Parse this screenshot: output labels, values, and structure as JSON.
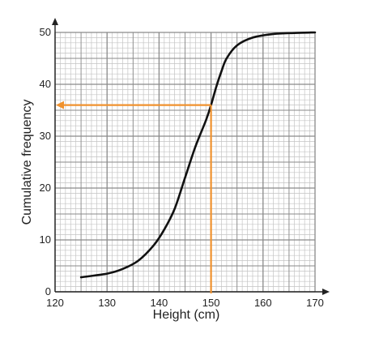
{
  "chart_data": {
    "type": "line",
    "xlabel": "Height (cm)",
    "ylabel": "Cumulative frequency",
    "xlim": [
      120,
      170
    ],
    "ylim": [
      0,
      50
    ],
    "x_ticks": [
      "120",
      "130",
      "140",
      "150",
      "160",
      "170"
    ],
    "y_ticks": [
      "0",
      "10",
      "20",
      "30",
      "40",
      "50"
    ],
    "grid": true,
    "grid_minor_step": [
      1,
      1
    ],
    "series": [
      {
        "color": "#111111",
        "points": [
          [
            125,
            2.8
          ],
          [
            130,
            3.5
          ],
          [
            133,
            4.4
          ],
          [
            136,
            6.0
          ],
          [
            139,
            9.0
          ],
          [
            141,
            12.0
          ],
          [
            143,
            16.0
          ],
          [
            145,
            22.0
          ],
          [
            147,
            28.0
          ],
          [
            149,
            33.0
          ],
          [
            150,
            36.0
          ],
          [
            151,
            39.5
          ],
          [
            152,
            42.5
          ],
          [
            153,
            45.0
          ],
          [
            155,
            47.5
          ],
          [
            158,
            49.0
          ],
          [
            162,
            49.7
          ],
          [
            166,
            49.9
          ],
          [
            170,
            50.0
          ]
        ]
      }
    ],
    "annotations": [
      {
        "type": "reading-line",
        "color": "#f0922e",
        "x": 150,
        "y": 36
      }
    ],
    "colors": {
      "grid_major": "#8a8a8a",
      "grid_minor": "#c4c4c4",
      "axis": "#222222"
    }
  }
}
